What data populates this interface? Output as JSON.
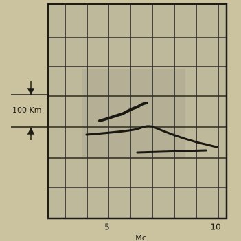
{
  "scale_label": "100 Km",
  "x_axis": {
    "tick_labels": [
      "5",
      "10"
    ],
    "unit": "Mc"
  }
}
